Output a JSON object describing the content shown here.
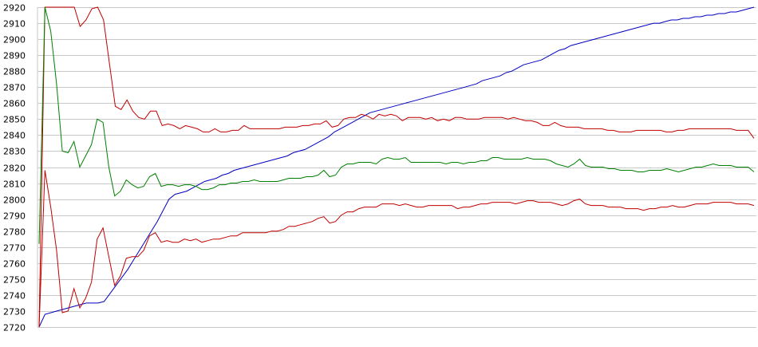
{
  "chart_data": {
    "type": "line",
    "title": "",
    "xlabel": "",
    "ylabel": "",
    "ylim": [
      2720,
      2920
    ],
    "yticks": [
      2920,
      2910,
      2900,
      2890,
      2880,
      2870,
      2860,
      2850,
      2840,
      2830,
      2820,
      2810,
      2800,
      2790,
      2780,
      2770,
      2760,
      2750,
      2740,
      2730,
      2720
    ],
    "grid": true,
    "legend": "none",
    "x_step": 1,
    "series": [
      {
        "color": "#0000c0",
        "values": [
          2720,
          2728,
          2729,
          2730,
          2731,
          2732,
          2733,
          2734,
          2735,
          2735,
          2735,
          2736,
          2741,
          2746,
          2751,
          2756,
          2762,
          2768,
          2774,
          2780,
          2786,
          2793,
          2800,
          2803,
          2804,
          2805,
          2807,
          2809,
          2811,
          2812,
          2813,
          2815,
          2816,
          2818,
          2819,
          2820,
          2821,
          2822,
          2823,
          2824,
          2825,
          2826,
          2827,
          2829,
          2830,
          2831,
          2833,
          2835,
          2837,
          2839,
          2842,
          2844,
          2846,
          2848,
          2850,
          2852,
          2854,
          2855,
          2856,
          2857,
          2858,
          2859,
          2860,
          2861,
          2862,
          2863,
          2864,
          2865,
          2866,
          2867,
          2868,
          2869,
          2870,
          2871,
          2872,
          2874,
          2875,
          2876,
          2877,
          2879,
          2880,
          2882,
          2884,
          2885,
          2886,
          2887,
          2889,
          2891,
          2893,
          2894,
          2896,
          2897,
          2898,
          2899,
          2900,
          2901,
          2902,
          2903,
          2904,
          2905,
          2906,
          2907,
          2908,
          2909,
          2910,
          2910,
          2911,
          2912,
          2912,
          2913,
          2913,
          2914,
          2914,
          2915,
          2915,
          2916,
          2916,
          2917,
          2917,
          2918,
          2919,
          2920
        ],
        "width": 1
      },
      {
        "color": "#c00000",
        "values": [
          2720,
          2920,
          2920,
          2920,
          2920,
          2920,
          2920,
          2908,
          2912,
          2919,
          2920,
          2912,
          2885,
          2858,
          2856,
          2862,
          2855,
          2851,
          2850,
          2855,
          2855,
          2846,
          2847,
          2846,
          2844,
          2846,
          2845,
          2844,
          2842,
          2842,
          2844,
          2842,
          2842,
          2843,
          2843,
          2846,
          2844,
          2844,
          2844,
          2844,
          2844,
          2844,
          2845,
          2845,
          2845,
          2846,
          2846,
          2847,
          2847,
          2849,
          2845,
          2846,
          2850,
          2851,
          2851,
          2853,
          2852,
          2850,
          2853,
          2852,
          2853,
          2852,
          2849,
          2851,
          2851,
          2851,
          2850,
          2851,
          2849,
          2850,
          2849,
          2851,
          2851,
          2850,
          2850,
          2850,
          2851,
          2851,
          2851,
          2851,
          2850,
          2851,
          2850,
          2849,
          2849,
          2848,
          2846,
          2846,
          2848,
          2846,
          2845,
          2845,
          2845,
          2844,
          2844,
          2844,
          2844,
          2843,
          2843,
          2842,
          2842,
          2842,
          2843,
          2843,
          2843,
          2843,
          2843,
          2842,
          2842,
          2843,
          2843,
          2844,
          2844,
          2844,
          2844,
          2844,
          2844,
          2844,
          2844,
          2843,
          2843,
          2843,
          2838
        ],
        "width": 1
      },
      {
        "color": "#008000",
        "values": [
          2772,
          2920,
          2905,
          2872,
          2830,
          2829,
          2836,
          2820,
          2827,
          2834,
          2850,
          2848,
          2820,
          2802,
          2805,
          2812,
          2809,
          2807,
          2808,
          2814,
          2816,
          2808,
          2809,
          2809,
          2808,
          2809,
          2809,
          2808,
          2806,
          2806,
          2807,
          2809,
          2809,
          2810,
          2810,
          2811,
          2811,
          2812,
          2811,
          2811,
          2811,
          2811,
          2812,
          2813,
          2813,
          2813,
          2814,
          2814,
          2815,
          2818,
          2814,
          2815,
          2820,
          2822,
          2822,
          2823,
          2823,
          2823,
          2822,
          2825,
          2826,
          2825,
          2825,
          2826,
          2823,
          2823,
          2823,
          2823,
          2823,
          2823,
          2822,
          2823,
          2823,
          2822,
          2823,
          2823,
          2824,
          2824,
          2826,
          2826,
          2825,
          2825,
          2825,
          2825,
          2826,
          2825,
          2825,
          2825,
          2824,
          2822,
          2821,
          2820,
          2822,
          2825,
          2821,
          2820,
          2820,
          2820,
          2819,
          2819,
          2818,
          2818,
          2818,
          2817,
          2817,
          2818,
          2818,
          2818,
          2819,
          2818,
          2817,
          2818,
          2819,
          2820,
          2820,
          2821,
          2822,
          2821,
          2821,
          2821,
          2820,
          2820,
          2820,
          2817
        ],
        "width": 1
      },
      {
        "color": "#c00000",
        "values": [
          2720,
          2818,
          2795,
          2768,
          2729,
          2730,
          2744,
          2732,
          2738,
          2748,
          2775,
          2782,
          2764,
          2746,
          2752,
          2763,
          2764,
          2764,
          2768,
          2777,
          2779,
          2773,
          2774,
          2773,
          2773,
          2775,
          2774,
          2775,
          2773,
          2774,
          2775,
          2775,
          2776,
          2777,
          2777,
          2779,
          2779,
          2779,
          2779,
          2779,
          2780,
          2780,
          2781,
          2783,
          2783,
          2784,
          2785,
          2786,
          2788,
          2789,
          2785,
          2786,
          2790,
          2792,
          2792,
          2794,
          2795,
          2795,
          2795,
          2797,
          2797,
          2797,
          2796,
          2797,
          2796,
          2795,
          2795,
          2796,
          2796,
          2796,
          2796,
          2796,
          2794,
          2795,
          2795,
          2796,
          2797,
          2797,
          2798,
          2798,
          2798,
          2798,
          2797,
          2798,
          2799,
          2799,
          2798,
          2798,
          2798,
          2797,
          2796,
          2797,
          2799,
          2800,
          2797,
          2796,
          2796,
          2796,
          2795,
          2795,
          2795,
          2794,
          2794,
          2794,
          2793,
          2794,
          2794,
          2795,
          2795,
          2796,
          2795,
          2795,
          2796,
          2797,
          2797,
          2797,
          2798,
          2798,
          2798,
          2798,
          2797,
          2797,
          2797,
          2796
        ],
        "width": 1
      }
    ]
  }
}
